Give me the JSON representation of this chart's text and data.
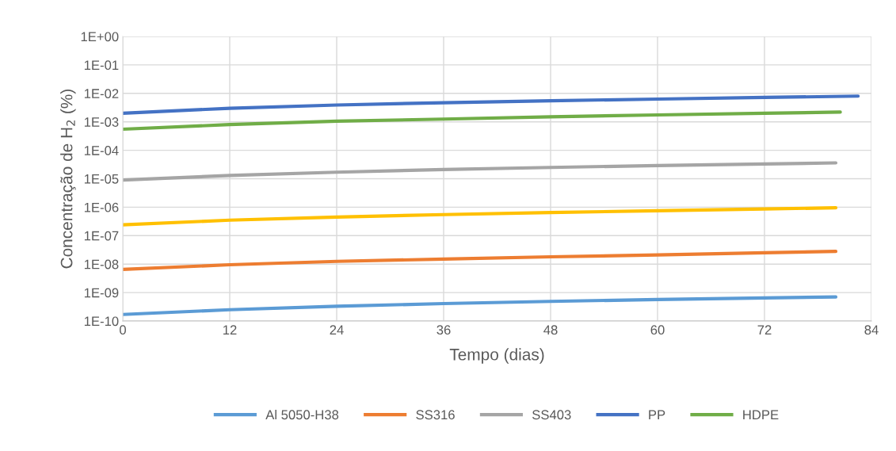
{
  "chart_data": {
    "type": "line",
    "xlabel": "Tempo (dias)",
    "ylabel": "Concentração de H$_{2}$ (%)",
    "x": [
      0,
      12,
      24,
      36,
      48,
      60,
      72,
      80
    ],
    "series": [
      {
        "name": "Al 5050-H38",
        "color": "#5b9bd5",
        "values": [
          1.7e-10,
          2.5e-10,
          3.3e-10,
          4.1e-10,
          4.9e-10,
          5.7e-10,
          6.5e-10,
          7e-10
        ]
      },
      {
        "name": "SS316",
        "color": "#ed7d31",
        "values": [
          6.5e-09,
          9.5e-09,
          1.25e-08,
          1.5e-08,
          1.8e-08,
          2.1e-08,
          2.5e-08,
          2.8e-08
        ]
      },
      {
        "name": "SS403",
        "color": "#a5a5a5",
        "values": [
          9e-06,
          1.3e-05,
          1.7e-05,
          2.1e-05,
          2.5e-05,
          2.9e-05,
          3.3e-05,
          3.6e-05
        ]
      },
      {
        "color": "#ffc000",
        "values": [
          2.4e-07,
          3.5e-07,
          4.5e-07,
          5.5e-07,
          6.5e-07,
          7.5e-07,
          8.7e-07,
          9.5e-07
        ]
      },
      {
        "name": "PP",
        "color": "#4472c4",
        "x": [
          0,
          12,
          24,
          36,
          48,
          60,
          72,
          82.5
        ],
        "values": [
          0.002,
          0.003,
          0.0039,
          0.0047,
          0.0055,
          0.0063,
          0.0072,
          0.008
        ]
      },
      {
        "name": "HDPE",
        "color": "#70ad47",
        "x": [
          0,
          12,
          24,
          36,
          48,
          60,
          72,
          80.5
        ],
        "values": [
          0.00055,
          0.0008,
          0.00105,
          0.00125,
          0.0015,
          0.00175,
          0.002,
          0.0022
        ]
      }
    ],
    "log": "y",
    "xlim": [
      0,
      84
    ],
    "xticks": [
      0,
      12,
      24,
      36,
      48,
      60,
      72,
      84
    ],
    "ylim": [
      1e-10,
      1
    ],
    "yticks": [
      {
        "value": 1e-10,
        "label": "1E-10"
      },
      {
        "value": 1e-09,
        "label": "1E-09"
      },
      {
        "value": 1e-08,
        "label": "1E-08"
      },
      {
        "value": 1e-07,
        "label": "1E-07"
      },
      {
        "value": 1e-06,
        "label": "1E-06"
      },
      {
        "value": 1e-05,
        "label": "1E-05"
      },
      {
        "value": 0.0001,
        "label": "1E-04"
      },
      {
        "value": 0.001,
        "label": "1E-03"
      },
      {
        "value": 0.01,
        "label": "1E-02"
      },
      {
        "value": 0.1,
        "label": "1E-01"
      },
      {
        "value": 1,
        "label": "1E+00"
      }
    ],
    "grid": true,
    "legend": "bottom",
    "marker": "none",
    "line_style": "solid"
  }
}
